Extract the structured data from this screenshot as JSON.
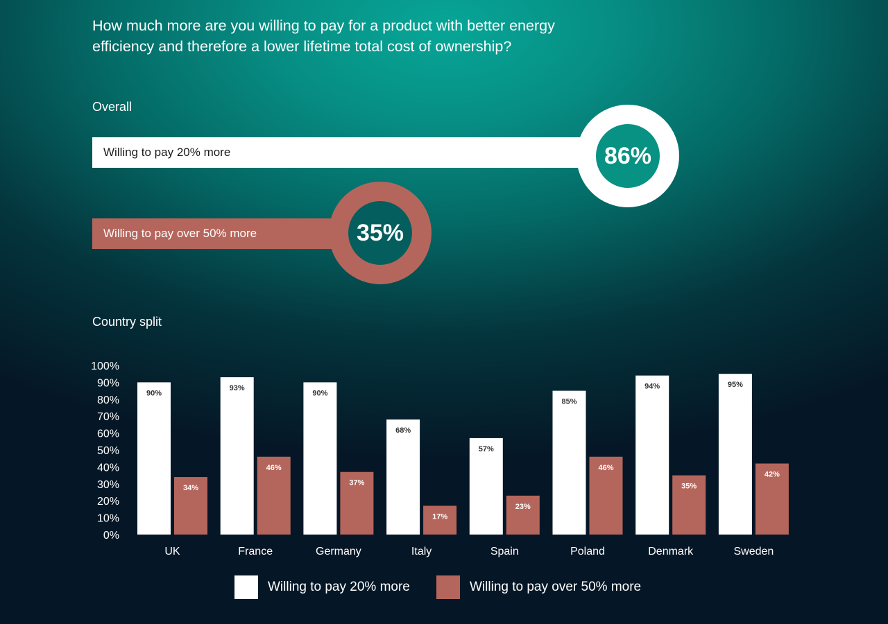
{
  "question": "How much more are you willing to pay for a product with better energy efficiency and therefore a lower lifetime total cost of ownership?",
  "overall": {
    "title": "Overall",
    "items": [
      {
        "label": "Willing to pay 20% more",
        "value_label": "86%",
        "value": 86
      },
      {
        "label": "Willing to pay over 50% more",
        "value_label": "35%",
        "value": 35
      }
    ]
  },
  "country_title": "Country split",
  "colors": {
    "white_bar": "#ffffff",
    "red_bar": "#b5665c",
    "teal": "#089283"
  },
  "chart_data": {
    "type": "bar",
    "title": "Country split",
    "categories": [
      "UK",
      "France",
      "Germany",
      "Italy",
      "Spain",
      "Poland",
      "Denmark",
      "Sweden"
    ],
    "series": [
      {
        "name": "Willing to pay 20% more",
        "values": [
          90,
          93,
          90,
          68,
          57,
          85,
          94,
          95
        ],
        "labels": [
          "90%",
          "93%",
          "90%",
          "68%",
          "57%",
          "85%",
          "94%",
          "95%"
        ]
      },
      {
        "name": "Willing to pay over 50% more",
        "values": [
          34,
          46,
          37,
          17,
          23,
          46,
          35,
          42
        ],
        "labels": [
          "34%",
          "46%",
          "37%",
          "17%",
          "23%",
          "46%",
          "35%",
          "42%"
        ]
      }
    ],
    "yticks": [
      "0%",
      "10%",
      "20%",
      "30%",
      "40%",
      "50%",
      "60%",
      "70%",
      "80%",
      "90%",
      "100%"
    ],
    "ylim": [
      0,
      100
    ],
    "xlabel": "",
    "ylabel": "",
    "grid": false,
    "legend_position": "bottom"
  }
}
